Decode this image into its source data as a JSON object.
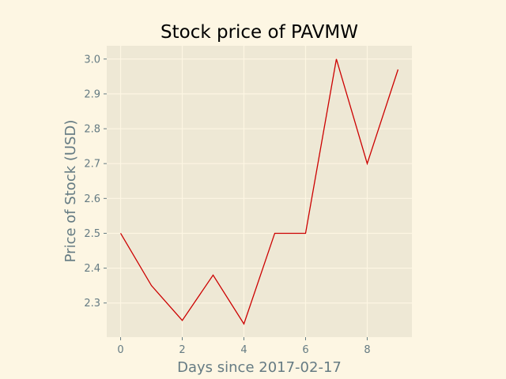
{
  "chart_data": {
    "type": "line",
    "title": "Stock price of PAVMW",
    "xlabel": "Days since 2017-02-17",
    "ylabel": "Price of Stock (USD)",
    "x": [
      0,
      1,
      2,
      3,
      4,
      5,
      6,
      7,
      8,
      9
    ],
    "series": [
      {
        "values": [
          2.5,
          2.35,
          2.25,
          2.38,
          2.24,
          2.5,
          2.5,
          3.0,
          2.7,
          2.97
        ]
      }
    ],
    "xlim": [
      -0.45,
      9.45
    ],
    "ylim": [
      2.202,
      3.038
    ],
    "xticks": [
      "0",
      "2",
      "4",
      "6",
      "8"
    ],
    "yticks": [
      "2.3",
      "2.4",
      "2.5",
      "2.6",
      "2.7",
      "2.8",
      "2.9",
      "3.0"
    ],
    "grid": true,
    "colors": {
      "figure_bg": "#fdf6e3",
      "axes_bg": "#eee8d5",
      "grid": "#fdf6e3",
      "line": "#cc0000",
      "text": "#657b83"
    }
  }
}
